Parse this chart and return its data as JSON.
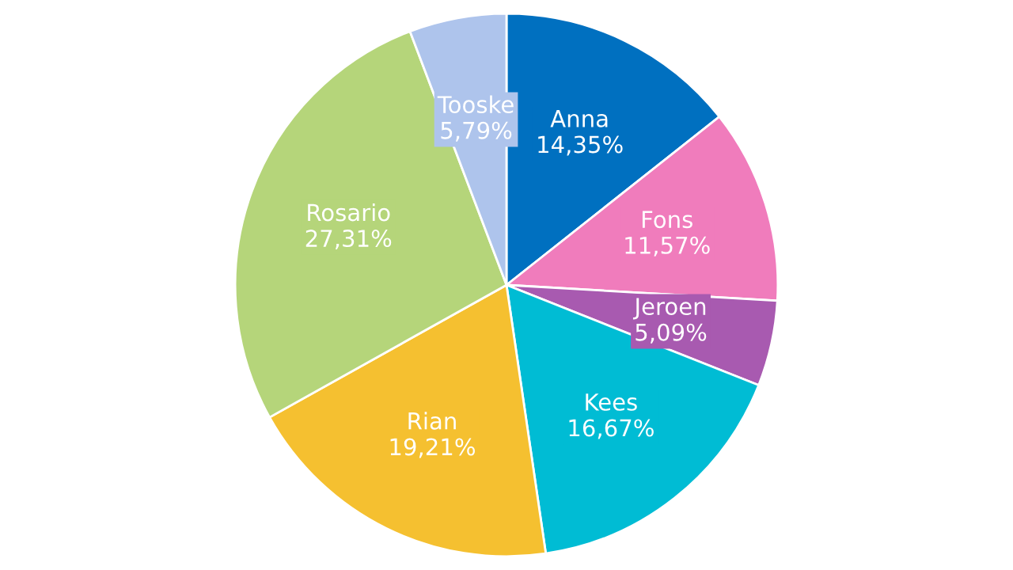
{
  "chart_data": {
    "type": "pie",
    "categories": [
      "Anna",
      "Fons",
      "Jeroen",
      "Kees",
      "Rian",
      "Rosario",
      "Tooske"
    ],
    "values": [
      14.35,
      11.57,
      5.09,
      16.67,
      19.21,
      27.31,
      5.79
    ],
    "value_labels": [
      "14,35%",
      "11,57%",
      "5,09%",
      "16,67%",
      "19,21%",
      "27,31%",
      "5,79%"
    ],
    "colors": [
      "#0070c0",
      "#f07cbc",
      "#a85ab0",
      "#00bcd4",
      "#f5c030",
      "#b5d57a",
      "#aec4ec"
    ]
  }
}
